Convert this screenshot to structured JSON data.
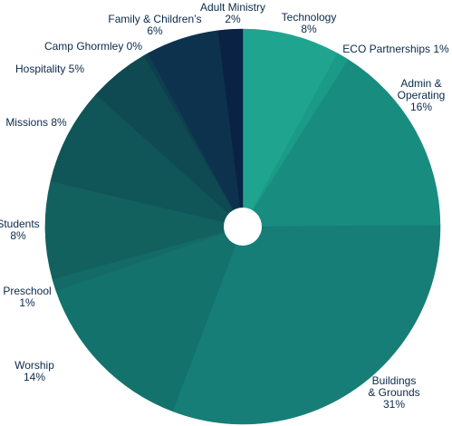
{
  "chart_data": {
    "type": "pie",
    "donut": true,
    "start_angle_deg": 0,
    "direction": "clockwise",
    "slices": [
      {
        "label": "Technology",
        "value_text": "8%",
        "value": 8,
        "color": "#1fa58f"
      },
      {
        "label": "ECO Partnerships",
        "value_text": "1%",
        "value": 1,
        "color": "#1b9a87"
      },
      {
        "label": "Admin & Operating",
        "value_text": "16%",
        "value": 16,
        "color": "#198c80"
      },
      {
        "label": "Buildings & Grounds",
        "value_text": "31%",
        "value": 31,
        "color": "#167e77"
      },
      {
        "label": "Worship",
        "value_text": "14%",
        "value": 14,
        "color": "#14726d"
      },
      {
        "label": "Preschool",
        "value_text": "1%",
        "value": 1,
        "color": "#136a66"
      },
      {
        "label": "Students",
        "value_text": "8%",
        "value": 8,
        "color": "#12615f"
      },
      {
        "label": "Missions",
        "value_text": "8%",
        "value": 8,
        "color": "#105558"
      },
      {
        "label": "Hospitality",
        "value_text": "5%",
        "value": 5,
        "color": "#0f4a52"
      },
      {
        "label": "Camp Ghormley",
        "value_text": "0%",
        "value": 0.4,
        "color": "#0d3f4d"
      },
      {
        "label": "Family & Children’s",
        "value_text": "6%",
        "value": 6,
        "color": "#0c324e"
      },
      {
        "label": "Adult Ministry",
        "value_text": "2%",
        "value": 2,
        "color": "#0a2244"
      }
    ]
  }
}
